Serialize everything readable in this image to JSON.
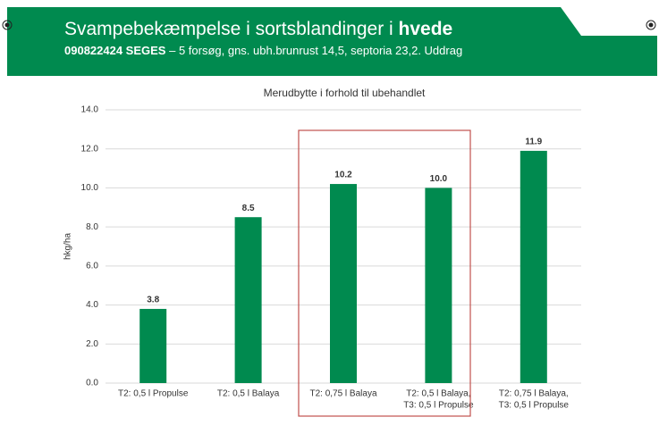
{
  "header": {
    "title": [
      "Svampebekæmpelse i sortsblandinger i ",
      "hvede"
    ],
    "subtitle": [
      "090822424 SEGES",
      " – 5 forsøg, gns. ubh.brunrust 14,5, septoria 23,2. Uddrag"
    ]
  },
  "chart_data": {
    "type": "bar",
    "title": "Merudbytte i forhold til ubehandlet",
    "y_label": "hkg/ha",
    "categories": [
      [
        "T2: 0,5 l Propulse"
      ],
      [
        "T2: 0,5 l Balaya"
      ],
      [
        "T2: 0,75 l Balaya"
      ],
      [
        "T2: 0,5 l Balaya,",
        "T3: 0,5 l Propulse"
      ],
      [
        "T2: 0,75 l Balaya,",
        "T3: 0,5 l Propulse"
      ]
    ],
    "values": [
      3.8,
      8.5,
      10.2,
      10,
      11.9
    ],
    "value_labels": [
      "3.8",
      "8.5",
      "10.2",
      "10.0",
      "11.9"
    ],
    "color": "#008a4f",
    "ylim": [
      0,
      14
    ],
    "yticks": [
      {
        "value": 0,
        "label": "0.0"
      },
      {
        "value": 2,
        "label": "2.0"
      },
      {
        "value": 4,
        "label": "4.0"
      },
      {
        "value": 6,
        "label": "6.0"
      },
      {
        "value": 8,
        "label": "8.0"
      },
      {
        "value": 10,
        "label": "10.0"
      },
      {
        "value": 12,
        "label": "12.0"
      },
      {
        "value": 14,
        "label": "14.0"
      }
    ],
    "grid": true
  }
}
